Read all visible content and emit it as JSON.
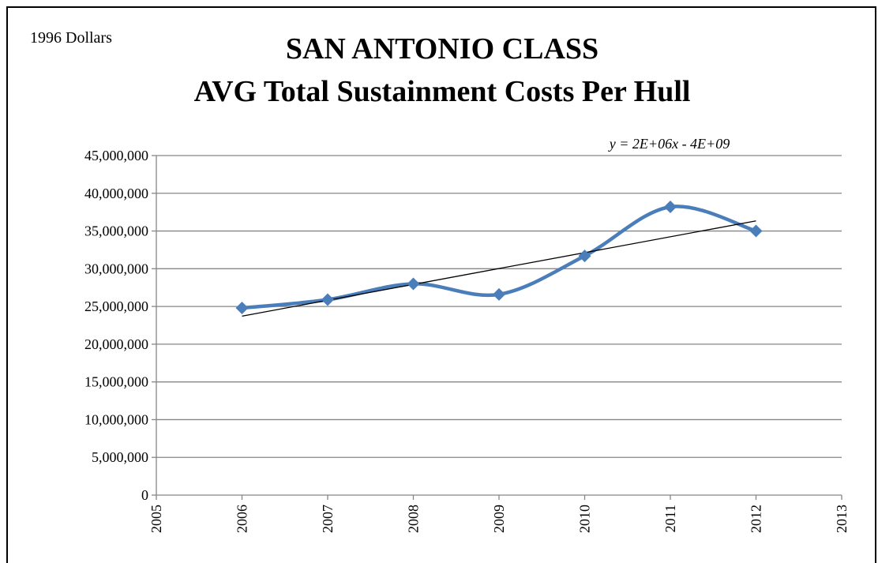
{
  "chart_data": {
    "type": "line",
    "title": [
      "SAN ANTONIO CLASS",
      "AVG Total Sustainment Costs Per Hull"
    ],
    "note": "1996 Dollars",
    "trendline_label": "y = 2E+06x - 4E+09",
    "trendline": "linear",
    "x": [
      2006,
      2007,
      2008,
      2009,
      2010,
      2011,
      2012
    ],
    "series": [
      {
        "name": "Avg Total Sustainment Cost",
        "color": "#4a7ebb",
        "values": [
          24800000,
          25900000,
          28000000,
          26600000,
          31700000,
          38200000,
          35000000
        ]
      }
    ],
    "trend_color": "#000000",
    "xlim": [
      2005,
      2013
    ],
    "xticks": [
      2005,
      2006,
      2007,
      2008,
      2009,
      2010,
      2011,
      2012,
      2013
    ],
    "ylim": [
      0,
      45000000
    ],
    "yticks": [
      0,
      {
        "value": 5000000,
        "label": "5,000,000"
      },
      {
        "value": 10000000,
        "label": "10,000,000"
      },
      {
        "value": 15000000,
        "label": "15,000,000"
      },
      {
        "value": 20000000,
        "label": "20,000,000"
      },
      {
        "value": 25000000,
        "label": "25,000,000"
      },
      {
        "value": 30000000,
        "label": "30,000,000"
      },
      {
        "value": 35000000,
        "label": "35,000,000"
      },
      {
        "value": 40000000,
        "label": "40,000,000"
      },
      {
        "value": 45000000,
        "label": "45,000,000"
      }
    ],
    "grid": true
  }
}
